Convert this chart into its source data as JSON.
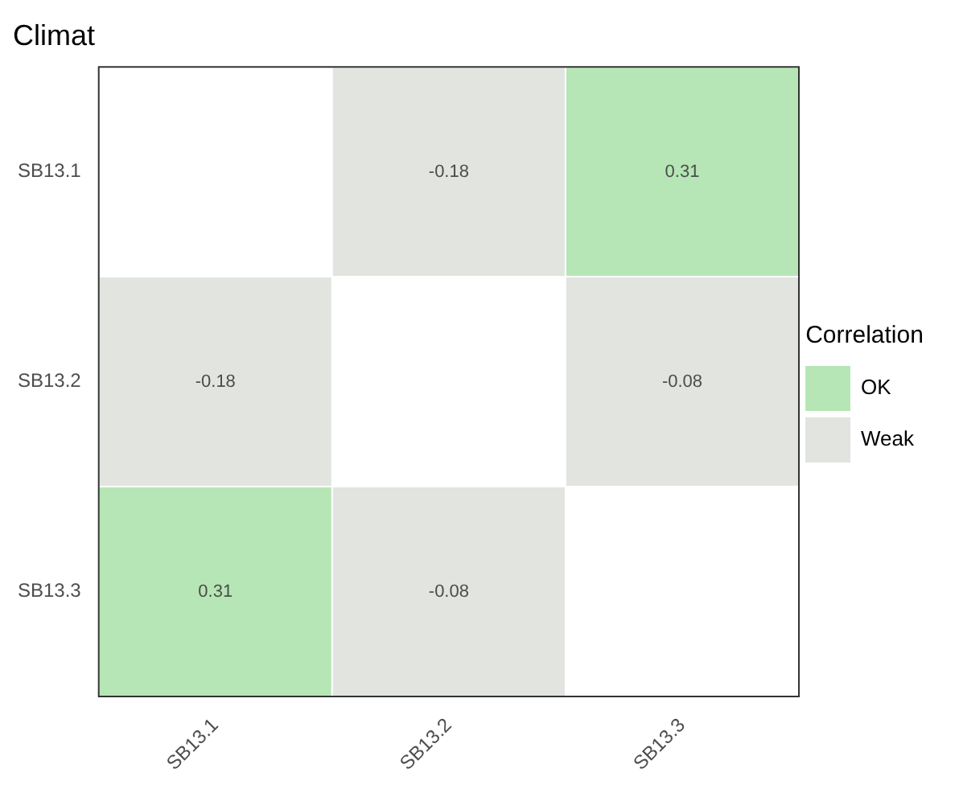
{
  "chart_data": {
    "type": "heatmap",
    "title": "Climat",
    "legend_title": "Correlation",
    "legend": "right",
    "data_labels": true,
    "categories": [
      "SB13.1",
      "SB13.2",
      "SB13.3"
    ],
    "y_categories": [
      "SB13.1",
      "SB13.2",
      "SB13.3"
    ],
    "cells": [
      [
        null,
        -0.18,
        0.31
      ],
      [
        -0.18,
        null,
        -0.08
      ],
      [
        0.31,
        -0.08,
        null
      ]
    ],
    "colors": [
      [
        null,
        "#e1e4df",
        "#b6e6b6"
      ],
      [
        "#e1e4df",
        null,
        "#e1e4df"
      ],
      [
        "#b6e6b6",
        "#e1e4df",
        null
      ]
    ],
    "series": [
      {
        "name": "OK",
        "color": "#b6e6b6",
        "values": [
          null,
          null,
          null
        ]
      },
      {
        "name": "Weak",
        "color": "#e1e4df",
        "values": [
          null,
          null,
          null
        ]
      }
    ]
  }
}
